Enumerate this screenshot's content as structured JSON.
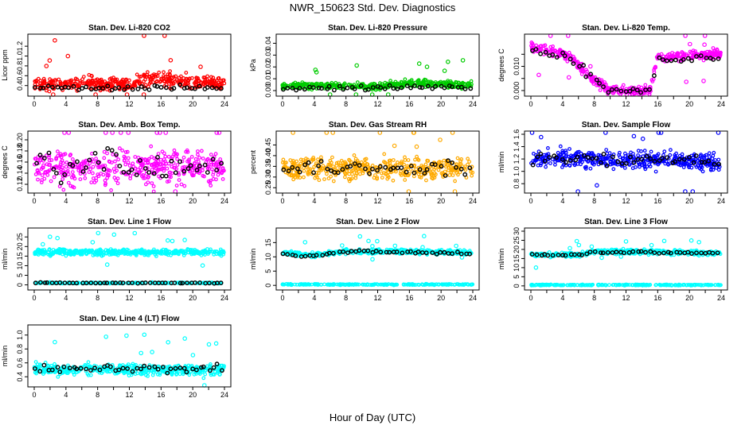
{
  "page": {
    "title": "NWR_150623  Std. Dev. Diagnostics",
    "x_caption": "Hour of Day (UTC)"
  },
  "chart_data": [
    {
      "type": "scatter",
      "title": "Stan. Dev. Li-820 CO2",
      "ylabel": "Licor ppm",
      "color": "#ff0000",
      "xlim": [
        0,
        24
      ],
      "ylim": [
        0.25,
        1.38
      ],
      "yticks": [
        0.4,
        0.6,
        0.8,
        1.0,
        1.2
      ],
      "ytick_labels": [
        "0.4",
        "0.6",
        "0.8",
        "1.0",
        "1.2"
      ],
      "profile": [
        [
          0,
          0.4
        ],
        [
          4,
          0.45
        ],
        [
          8,
          0.45
        ],
        [
          12,
          0.4
        ],
        [
          14,
          0.55
        ],
        [
          16,
          0.55
        ],
        [
          20,
          0.45
        ],
        [
          24,
          0.45
        ]
      ],
      "spread": 0.14,
      "black_profile": [
        [
          0,
          0.35
        ],
        [
          24,
          0.35
        ]
      ],
      "black_spread": 0.05
    },
    {
      "type": "scatter",
      "title": "Stan. Dev. Li-820 Pressure",
      "ylabel": "kPa",
      "color": "#00cc00",
      "xlim": [
        0,
        24
      ],
      "ylim": [
        -0.002,
        0.045
      ],
      "yticks": [
        0.0,
        0.01,
        0.02,
        0.03,
        0.04
      ],
      "ytick_labels": [
        "0.00",
        "0.01",
        "0.02",
        "0.03",
        "0.04"
      ],
      "profile": [
        [
          0,
          0.004
        ],
        [
          8,
          0.004
        ],
        [
          12,
          0.003
        ],
        [
          16,
          0.006
        ],
        [
          20,
          0.005
        ],
        [
          24,
          0.005
        ]
      ],
      "spread": 0.003,
      "black_profile": [
        [
          0,
          0.002
        ],
        [
          24,
          0.003
        ]
      ],
      "black_spread": 0.002
    },
    {
      "type": "scatter",
      "title": "Stan. Dev. Li-820 Temp.",
      "ylabel": "degrees C",
      "color": "#ff00ff",
      "xlim": [
        0,
        24
      ],
      "ylim": [
        -0.001,
        0.022
      ],
      "yticks": [
        0.0,
        0.005,
        0.01,
        0.015
      ],
      "ytick_labels": [
        "0.000",
        "",
        "0.010",
        ""
      ],
      "profile": [
        [
          0,
          0.018
        ],
        [
          2,
          0.017
        ],
        [
          5,
          0.014
        ],
        [
          7,
          0.007
        ],
        [
          9,
          0.002
        ],
        [
          10,
          0
        ],
        [
          15,
          0
        ],
        [
          16,
          0.014
        ],
        [
          24,
          0.015
        ]
      ],
      "spread": 0.002,
      "black_profile": [
        [
          0,
          0.016
        ],
        [
          5,
          0.013
        ],
        [
          8,
          0.005
        ],
        [
          10,
          0
        ],
        [
          15,
          0
        ],
        [
          16,
          0.013
        ],
        [
          24,
          0.014
        ]
      ],
      "black_spread": 0.0015
    },
    {
      "type": "scatter",
      "title": "Stan. Dev. Amb. Box Temp.",
      "ylabel": "degrees C",
      "color": "#ff00ff",
      "xlim": [
        0,
        24
      ],
      "ylim": [
        0.11,
        0.21
      ],
      "yticks": [
        0.12,
        0.14,
        0.16,
        0.18,
        0.2
      ],
      "ytick_labels": [
        "0.12",
        "0.14",
        "0.16",
        "0.18",
        "0.20"
      ],
      "profile": [
        [
          0,
          0.15
        ],
        [
          24,
          0.15
        ]
      ],
      "spread": 0.03,
      "black_profile": [
        [
          0,
          0.15
        ],
        [
          24,
          0.15
        ]
      ],
      "black_spread": 0.025
    },
    {
      "type": "scatter",
      "title": "Stan. Dev. Gas Stream RH",
      "ylabel": "percent",
      "color": "#ffaa00",
      "xlim": [
        0,
        24
      ],
      "ylim": [
        0.24,
        0.5
      ],
      "yticks": [
        0.25,
        0.3,
        0.35,
        0.4,
        0.45
      ],
      "ytick_labels": [
        "0.25",
        "0.30",
        "0.35",
        "0.40",
        "0.45"
      ],
      "profile": [
        [
          0,
          0.34
        ],
        [
          24,
          0.34
        ]
      ],
      "spread": 0.05,
      "black_profile": [
        [
          0,
          0.34
        ],
        [
          24,
          0.34
        ]
      ],
      "black_spread": 0.04
    },
    {
      "type": "scatter",
      "title": "Stan. Dev. Sample Flow",
      "ylabel": "ml/min",
      "color": "#0000ff",
      "xlim": [
        0,
        24
      ],
      "ylim": [
        0.7,
        1.6
      ],
      "yticks": [
        0.8,
        1.0,
        1.2,
        1.4,
        1.6
      ],
      "ytick_labels": [
        "0.8",
        "1.0",
        "1.2",
        "1.4",
        "1.6"
      ],
      "profile": [
        [
          0,
          1.2
        ],
        [
          4,
          1.22
        ],
        [
          12,
          1.18
        ],
        [
          24,
          1.15
        ]
      ],
      "spread": 0.14,
      "black_profile": [
        [
          0,
          1.2
        ],
        [
          24,
          1.18
        ]
      ],
      "black_spread": 0.1
    },
    {
      "type": "scatter",
      "title": "Stan. Dev. Line 1 Flow",
      "ylabel": "ml/min",
      "color": "#00ffff",
      "xlim": [
        0,
        24
      ],
      "ylim": [
        -1,
        28
      ],
      "yticks": [
        0,
        5,
        10,
        15,
        20,
        25
      ],
      "ytick_labels": [
        "0",
        "5",
        "10",
        "15",
        "20",
        "25"
      ],
      "profile": [
        [
          0,
          17
        ],
        [
          8,
          17
        ],
        [
          24,
          17
        ]
      ],
      "spread": 1.5,
      "profile2": [
        [
          0,
          1
        ],
        [
          24,
          1
        ]
      ],
      "spread2": 0.3,
      "black_profile": [
        [
          0,
          1
        ],
        [
          24,
          1
        ]
      ],
      "black_spread": 0.2
    },
    {
      "type": "scatter",
      "title": "Stan. Dev. Line 2 Flow",
      "ylabel": "ml/min",
      "color": "#00ffff",
      "xlim": [
        0,
        24
      ],
      "ylim": [
        -0.5,
        19
      ],
      "yticks": [
        0,
        5,
        10,
        15
      ],
      "ytick_labels": [
        "0",
        "5",
        "10",
        "15"
      ],
      "profile": [
        [
          0,
          11.5
        ],
        [
          4,
          10.5
        ],
        [
          8,
          12
        ],
        [
          24,
          11.5
        ]
      ],
      "spread": 0.8,
      "profile2": [
        [
          0,
          0.3
        ],
        [
          24,
          0.3
        ]
      ],
      "spread2": 0.2,
      "black_profile": [
        [
          0,
          11
        ],
        [
          4,
          10.2
        ],
        [
          8,
          12
        ],
        [
          24,
          11.3
        ]
      ],
      "black_spread": 0.4
    },
    {
      "type": "scatter",
      "title": "Stan. Dev. Line 3 Flow",
      "ylabel": "ml/min",
      "color": "#00ffff",
      "xlim": [
        0,
        24
      ],
      "ylim": [
        -0.5,
        30
      ],
      "yticks": [
        0,
        5,
        10,
        15,
        20,
        25,
        30
      ],
      "ytick_labels": [
        "0",
        "5",
        "10",
        "15",
        "20",
        "25",
        "30"
      ],
      "profile": [
        [
          0,
          17
        ],
        [
          6,
          17
        ],
        [
          8,
          19
        ],
        [
          24,
          18
        ]
      ],
      "spread": 1.2,
      "profile2": [
        [
          0,
          0.5
        ],
        [
          24,
          0.5
        ]
      ],
      "spread2": 0.3,
      "black_profile": [
        [
          0,
          17
        ],
        [
          6,
          17
        ],
        [
          8,
          18.5
        ],
        [
          24,
          18
        ]
      ],
      "black_spread": 0.6
    },
    {
      "type": "scatter",
      "title": "Stan. Dev. Line 4 (LT) Flow",
      "ylabel": "ml/min",
      "color": "#00ffff",
      "xlim": [
        0,
        24
      ],
      "ylim": [
        0.3,
        1.1
      ],
      "yticks": [
        0.4,
        0.6,
        0.8,
        1.0
      ],
      "ytick_labels": [
        "0.4",
        "0.6",
        "0.8",
        "1.0"
      ],
      "profile": [
        [
          0,
          0.5
        ],
        [
          24,
          0.5
        ]
      ],
      "spread": 0.08,
      "black_profile": [
        [
          0,
          0.52
        ],
        [
          24,
          0.52
        ]
      ],
      "black_spread": 0.05
    }
  ]
}
